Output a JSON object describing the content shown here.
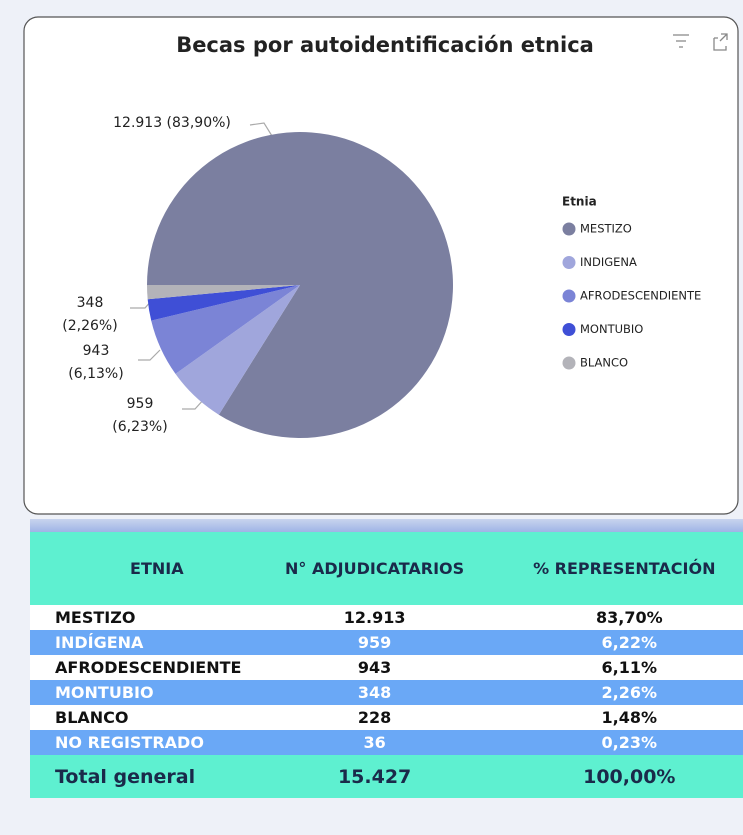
{
  "chart_data": {
    "type": "pie",
    "title": "Becas por autoidentificación etnica",
    "legend_title": "Etnia",
    "categories": [
      "MESTIZO",
      "INDIGENA",
      "AFRODESCENDIENTE",
      "MONTUBIO",
      "BLANCO"
    ],
    "values": [
      12913,
      959,
      943,
      348,
      228
    ],
    "value_labels": [
      "12.913 (83,90%)",
      "959 (6,23%)",
      "943 (6,13%)",
      "348 (2,26%)",
      null
    ],
    "colors": [
      "#7b7fa0",
      "#a0a6dc",
      "#7b84d6",
      "#3f4fd6",
      "#b3b3b9"
    ],
    "legend": "right"
  },
  "table": {
    "headers": [
      "ETNIA",
      "N° ADJUDICATARIOS",
      "% REPRESENTACIÓN"
    ],
    "rows": [
      [
        "MESTIZO",
        "12.913",
        "83,70%"
      ],
      [
        "INDÍGENA",
        "959",
        "6,22%"
      ],
      [
        "AFRODESCENDIENTE",
        "943",
        "6,11%"
      ],
      [
        "MONTUBIO",
        "348",
        "2,26%"
      ],
      [
        "BLANCO",
        "228",
        "1,48%"
      ],
      [
        "NO REGISTRADO",
        "36",
        "0,23%"
      ]
    ],
    "footer": [
      "Total general",
      "15.427",
      "100,00%"
    ]
  }
}
